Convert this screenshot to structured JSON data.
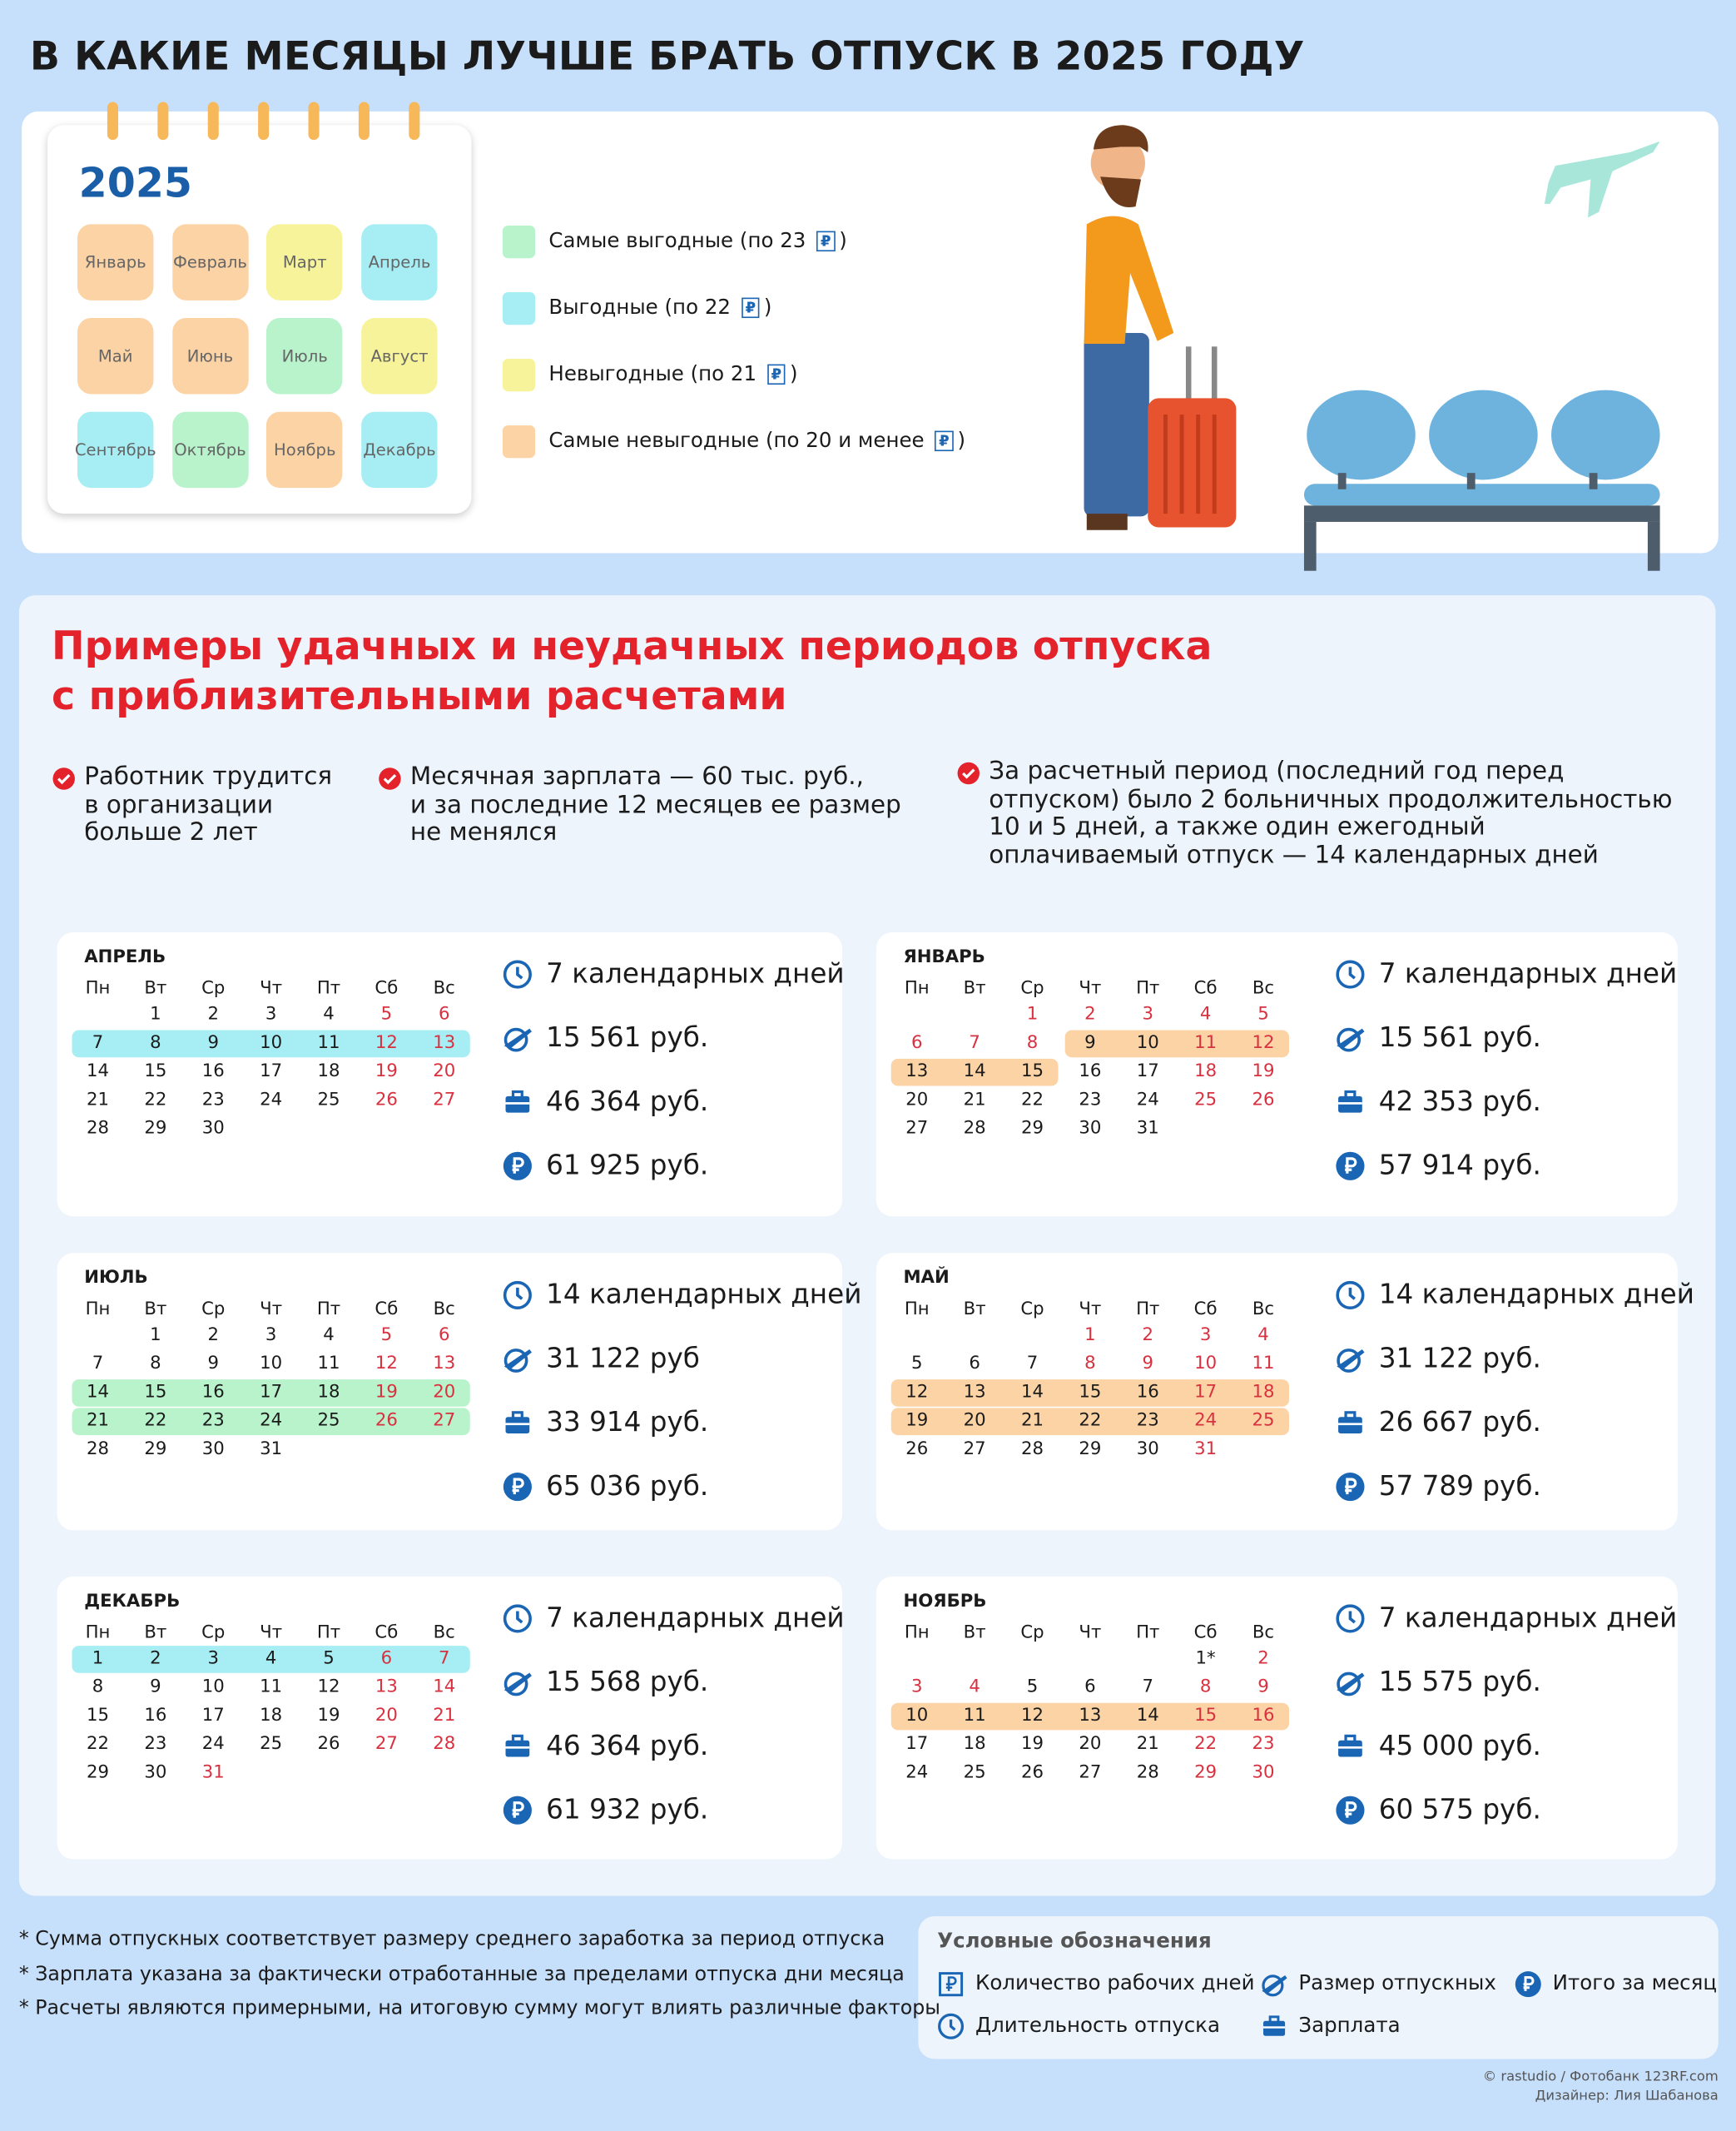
{
  "header": {
    "title": "В КАКИЕ МЕСЯЦЫ ЛУЧШЕ БРАТЬ ОТПУСК В 2025 ГОДУ"
  },
  "year_calendar": {
    "year": "2025",
    "months": [
      {
        "name": "Январь",
        "color": "#fcd3a5"
      },
      {
        "name": "Февраль",
        "color": "#fcd3a5"
      },
      {
        "name": "Март",
        "color": "#f6f39a"
      },
      {
        "name": "Апрель",
        "color": "#a6eef4"
      },
      {
        "name": "Май",
        "color": "#fcd3a5"
      },
      {
        "name": "Июнь",
        "color": "#fcd3a5"
      },
      {
        "name": "Июль",
        "color": "#b8f3cc"
      },
      {
        "name": "Август",
        "color": "#f6f39a"
      },
      {
        "name": "Сентябрь",
        "color": "#a6eef4"
      },
      {
        "name": "Октябрь",
        "color": "#b8f3cc"
      },
      {
        "name": "Ноябрь",
        "color": "#fcd3a5"
      },
      {
        "name": "Декабрь",
        "color": "#a6eef4"
      }
    ]
  },
  "legend": [
    {
      "label": "Самые выгодные (по 23 ₽)",
      "color": "#b8f3cc"
    },
    {
      "label": "Выгодные (по 22 ₽)",
      "color": "#a6eef4"
    },
    {
      "label": "Невыгодные (по 21 ₽)",
      "color": "#f6f39a"
    },
    {
      "label": "Самые невыгодные (по 20 и менее ₽)",
      "color": "#fcd3a5"
    }
  ],
  "examples": {
    "title": [
      "Примеры удачных и неудачных периодов отпуска",
      "с приблизительными расчетами"
    ],
    "conditions": [
      [
        "Работник трудится",
        "в организации",
        "больше 2 лет"
      ],
      [
        "Месячная зарплата — 60 тыс. руб.,",
        "и за последние 12 месяцев ее размер",
        "не менялся"
      ],
      [
        "За расчетный период (последний год перед",
        "отпуском) было 2 больничных продолжительностью",
        "10 и 5 дней, а также один ежегодный",
        "оплачиваемый отпуск — 14 календарных дней"
      ]
    ],
    "weekdays": [
      "Пн",
      "Вт",
      "Ср",
      "Чт",
      "Пт",
      "Сб",
      "Вс"
    ],
    "calendars": [
      {
        "month": "АПРЕЛЬ",
        "weeks": [
          [
            null,
            1,
            2,
            3,
            4,
            5,
            6
          ],
          [
            7,
            8,
            9,
            10,
            11,
            12,
            13
          ],
          [
            14,
            15,
            16,
            17,
            18,
            19,
            20
          ],
          [
            21,
            22,
            23,
            24,
            25,
            26,
            27
          ],
          [
            28,
            29,
            30
          ]
        ],
        "red": [
          5,
          6,
          12,
          13,
          19,
          20,
          26,
          27
        ],
        "period": [
          7,
          13
        ],
        "highlight": "#a6eef4",
        "stats": [
          "7 календарных дней",
          "15 561 руб.",
          "46 364  руб.",
          "61 925  руб."
        ]
      },
      {
        "month": "ЯНВАРЬ",
        "weeks": [
          [
            null,
            null,
            1,
            2,
            3,
            4,
            5
          ],
          [
            6,
            7,
            8,
            9,
            10,
            11,
            12
          ],
          [
            13,
            14,
            15,
            16,
            17,
            18,
            19
          ],
          [
            20,
            21,
            22,
            23,
            24,
            25,
            26
          ],
          [
            27,
            28,
            29,
            30,
            31
          ]
        ],
        "red": [
          1,
          2,
          3,
          4,
          5,
          6,
          7,
          8,
          11,
          12,
          18,
          19,
          25,
          26
        ],
        "period": [
          9,
          15
        ],
        "highlight": "#fcd3a5",
        "stats": [
          "7 календарных дней",
          "15 561 руб.",
          "42 353  руб.",
          "57 914  руб."
        ]
      },
      {
        "month": "ИЮЛЬ",
        "weeks": [
          [
            null,
            1,
            2,
            3,
            4,
            5,
            6
          ],
          [
            7,
            8,
            9,
            10,
            11,
            12,
            13
          ],
          [
            14,
            15,
            16,
            17,
            18,
            19,
            20
          ],
          [
            21,
            22,
            23,
            24,
            25,
            26,
            27
          ],
          [
            28,
            29,
            30,
            31
          ]
        ],
        "red": [
          5,
          6,
          12,
          13,
          19,
          20,
          26,
          27
        ],
        "period": [
          14,
          27
        ],
        "highlight": "#b8f3cc",
        "stats": [
          "14 календарных дней",
          "31 122 руб",
          "33 914  руб.",
          "65 036  руб."
        ]
      },
      {
        "month": "МАЙ",
        "weeks": [
          [
            null,
            null,
            null,
            1,
            2,
            3,
            4
          ],
          [
            5,
            6,
            7,
            8,
            9,
            10,
            11
          ],
          [
            12,
            13,
            14,
            15,
            16,
            17,
            18
          ],
          [
            19,
            20,
            21,
            22,
            23,
            24,
            25
          ],
          [
            26,
            27,
            28,
            29,
            30,
            31
          ]
        ],
        "red": [
          1,
          2,
          3,
          4,
          8,
          9,
          10,
          11,
          17,
          18,
          24,
          25,
          31
        ],
        "period": [
          12,
          25
        ],
        "highlight": "#fcd3a5",
        "stats": [
          "14 календарных дней",
          "31 122 руб.",
          "26 667  руб.",
          "57 789  руб."
        ]
      },
      {
        "month": "ДЕКАБРЬ",
        "weeks": [
          [
            1,
            2,
            3,
            4,
            5,
            6,
            7
          ],
          [
            8,
            9,
            10,
            11,
            12,
            13,
            14
          ],
          [
            15,
            16,
            17,
            18,
            19,
            20,
            21
          ],
          [
            22,
            23,
            24,
            25,
            26,
            27,
            28
          ],
          [
            29,
            30,
            31
          ]
        ],
        "red": [
          6,
          7,
          13,
          14,
          20,
          21,
          27,
          28,
          31
        ],
        "period": [
          1,
          7
        ],
        "highlight": "#a6eef4",
        "stats": [
          "7 календарных дней",
          "15 568 руб.",
          "46 364  руб.",
          "61 932  руб."
        ]
      },
      {
        "month": "НОЯБРЬ",
        "weeks": [
          [
            null,
            null,
            null,
            null,
            null,
            "1*",
            2
          ],
          [
            3,
            4,
            5,
            6,
            7,
            8,
            9
          ],
          [
            10,
            11,
            12,
            13,
            14,
            15,
            16
          ],
          [
            17,
            18,
            19,
            20,
            21,
            22,
            23
          ],
          [
            24,
            25,
            26,
            27,
            28,
            29,
            30
          ]
        ],
        "red": [
          2,
          3,
          4,
          8,
          9,
          15,
          16,
          22,
          23,
          29,
          30
        ],
        "period": [
          10,
          16
        ],
        "highlight": "#fcd3a5",
        "stats": [
          "7 календарных дней",
          "15 575 руб.",
          "45 000  руб.",
          "60 575  руб."
        ]
      }
    ]
  },
  "footnotes": [
    "* Сумма отпускных соответствует размеру среднего заработка за период отпуска",
    "* Зарплата указана за фактически отработанные за пределами отпуска дни месяца",
    "* Расчеты являются примерными, на итоговую сумму могут влиять различные факторы"
  ],
  "legend_icons": {
    "title": "Условные обозначения",
    "items": [
      "Количество рабочих дней",
      "Длительность отпуска",
      "Размер отпускных",
      "Зарплата",
      "Итого за месяц"
    ]
  },
  "credits": [
    "©  rastudio / Фотобанк 123RF.com",
    "Дизайнер: Лия Шабанова"
  ]
}
